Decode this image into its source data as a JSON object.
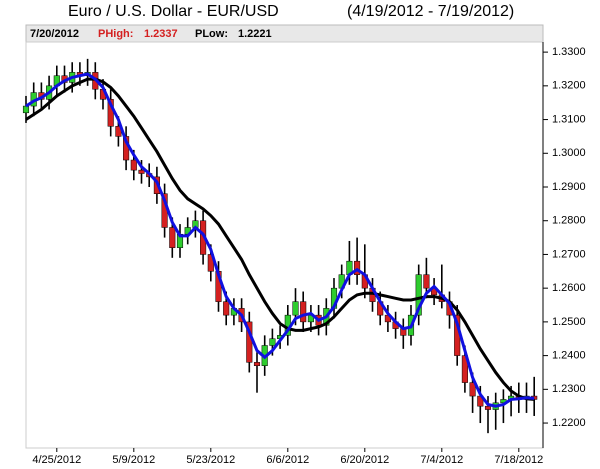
{
  "chart_data": {
    "type": "candlestick",
    "title": "Euro / U.S. Dollar -  EUR/USD",
    "subtitle": "(4/19/2012 - 7/19/2012)",
    "header": {
      "date": "7/20/2012",
      "high_label": "PHigh:",
      "high": "1.2337",
      "low_label": "PLow:",
      "low": "1.2221"
    },
    "categories": [
      null,
      null,
      null,
      null,
      "4/25/2012",
      null,
      null,
      null,
      null,
      null,
      null,
      null,
      null,
      null,
      "5/9/2012",
      null,
      null,
      null,
      null,
      null,
      null,
      null,
      null,
      null,
      "5/23/2012",
      null,
      null,
      null,
      null,
      null,
      null,
      null,
      null,
      null,
      "6/6/2012",
      null,
      null,
      null,
      null,
      null,
      null,
      null,
      null,
      null,
      "6/20/2012",
      null,
      null,
      null,
      null,
      null,
      null,
      null,
      null,
      null,
      "7/4/2012",
      null,
      null,
      null,
      null,
      null,
      null,
      null,
      null,
      null,
      "7/18/2012",
      null,
      null
    ],
    "open": [
      1.312,
      1.314,
      1.318,
      1.316,
      1.32,
      1.323,
      1.321,
      1.324,
      1.323,
      1.324,
      1.319,
      1.316,
      1.308,
      1.305,
      1.298,
      1.295,
      1.294,
      1.293,
      1.288,
      1.278,
      1.272,
      1.276,
      1.278,
      1.28,
      1.27,
      1.265,
      1.256,
      1.252,
      1.254,
      1.25,
      1.238,
      1.237,
      1.243,
      1.245,
      1.246,
      1.252,
      1.256,
      1.25,
      1.252,
      1.249,
      1.254,
      1.26,
      1.264,
      1.268,
      1.264,
      1.26,
      1.256,
      1.252,
      1.25,
      1.248,
      1.246,
      1.252,
      1.264,
      1.26,
      1.258,
      1.256,
      1.252,
      1.24,
      1.232,
      1.228,
      1.225,
      1.224,
      1.226,
      1.227,
      1.228,
      1.227,
      1.228
    ],
    "high": [
      1.317,
      1.321,
      1.321,
      1.323,
      1.326,
      1.326,
      1.327,
      1.327,
      1.328,
      1.327,
      1.322,
      1.319,
      1.311,
      1.308,
      1.301,
      1.298,
      1.297,
      1.296,
      1.291,
      1.281,
      1.279,
      1.281,
      1.283,
      1.283,
      1.273,
      1.268,
      1.259,
      1.257,
      1.257,
      1.253,
      1.241,
      1.246,
      1.248,
      1.249,
      1.255,
      1.26,
      1.259,
      1.255,
      1.255,
      1.257,
      1.263,
      1.267,
      1.274,
      1.275,
      1.273,
      1.263,
      1.259,
      1.255,
      1.253,
      1.251,
      1.255,
      1.267,
      1.269,
      1.263,
      1.267,
      1.259,
      1.255,
      1.243,
      1.235,
      1.231,
      1.228,
      1.229,
      1.23,
      1.231,
      1.232,
      1.232,
      1.2337
    ],
    "low": [
      1.309,
      1.311,
      1.313,
      1.313,
      1.317,
      1.318,
      1.318,
      1.32,
      1.32,
      1.316,
      1.313,
      1.305,
      1.302,
      1.295,
      1.292,
      1.291,
      1.29,
      1.285,
      1.275,
      1.269,
      1.269,
      1.273,
      1.275,
      1.267,
      1.262,
      1.253,
      1.249,
      1.249,
      1.247,
      1.235,
      1.229,
      1.234,
      1.24,
      1.242,
      1.243,
      1.249,
      1.247,
      1.247,
      1.246,
      1.246,
      1.251,
      1.257,
      1.261,
      1.261,
      1.257,
      1.253,
      1.249,
      1.247,
      1.245,
      1.242,
      1.243,
      1.249,
      1.257,
      1.255,
      1.254,
      1.248,
      1.237,
      1.229,
      1.223,
      1.22,
      1.217,
      1.218,
      1.22,
      1.222,
      1.223,
      1.223,
      1.2221
    ],
    "close": [
      1.314,
      1.318,
      1.316,
      1.32,
      1.323,
      1.321,
      1.324,
      1.323,
      1.324,
      1.319,
      1.316,
      1.308,
      1.305,
      1.298,
      1.295,
      1.294,
      1.293,
      1.288,
      1.278,
      1.272,
      1.276,
      1.278,
      1.28,
      1.27,
      1.265,
      1.256,
      1.252,
      1.254,
      1.25,
      1.238,
      1.237,
      1.243,
      1.245,
      1.246,
      1.252,
      1.256,
      1.25,
      1.252,
      1.249,
      1.254,
      1.26,
      1.264,
      1.268,
      1.264,
      1.26,
      1.256,
      1.252,
      1.25,
      1.248,
      1.246,
      1.252,
      1.264,
      1.26,
      1.258,
      1.256,
      1.252,
      1.24,
      1.232,
      1.228,
      1.225,
      1.224,
      1.226,
      1.227,
      1.228,
      1.227,
      1.228,
      1.227
    ],
    "up_color": "#2ecc2e",
    "down_color": "#d42020",
    "lines": [
      {
        "color": "#000000",
        "values": [
          1.31,
          1.3115,
          1.313,
          1.315,
          1.317,
          1.3185,
          1.32,
          1.321,
          1.322,
          1.322,
          1.3212,
          1.3195,
          1.317,
          1.314,
          1.311,
          1.3075,
          1.304,
          1.3005,
          1.2965,
          1.2925,
          1.289,
          1.2865,
          1.285,
          1.2835,
          1.2815,
          1.279,
          1.2755,
          1.272,
          1.2685,
          1.264,
          1.26,
          1.256,
          1.2525,
          1.2495,
          1.248,
          1.2475,
          1.2475,
          1.248,
          1.2485,
          1.2495,
          1.2515,
          1.254,
          1.2565,
          1.258,
          1.2585,
          1.2585,
          1.258,
          1.2575,
          1.257,
          1.2565,
          1.2565,
          1.257,
          1.2575,
          1.2575,
          1.257,
          1.256,
          1.2535,
          1.25,
          1.246,
          1.242,
          1.2385,
          1.235,
          1.232,
          1.2295,
          1.228,
          1.2272,
          1.227
        ]
      },
      {
        "color": "#1010e0",
        "values": [
          1.314,
          1.3155,
          1.3165,
          1.318,
          1.32,
          1.3215,
          1.3225,
          1.323,
          1.3235,
          1.322,
          1.3195,
          1.3145,
          1.31,
          1.3035,
          1.2995,
          1.296,
          1.294,
          1.2915,
          1.286,
          1.2795,
          1.2755,
          1.2755,
          1.278,
          1.276,
          1.2715,
          1.264,
          1.2575,
          1.254,
          1.252,
          1.247,
          1.2415,
          1.2395,
          1.2415,
          1.2445,
          1.2475,
          1.251,
          1.252,
          1.2525,
          1.2505,
          1.2515,
          1.2545,
          1.2595,
          1.264,
          1.2655,
          1.264,
          1.26,
          1.256,
          1.2525,
          1.25,
          1.248,
          1.2485,
          1.254,
          1.2585,
          1.2605,
          1.258,
          1.2555,
          1.2495,
          1.2415,
          1.2335,
          1.2285,
          1.2255,
          1.225,
          1.2255,
          1.227,
          1.2272,
          1.2275,
          1.2273
        ]
      }
    ],
    "ylim": [
      1.2126,
      1.333
    ],
    "yticks": [
      {
        "value": 1.22,
        "label": "1.2200"
      },
      {
        "value": 1.23,
        "label": "1.2300"
      },
      {
        "value": 1.24,
        "label": "1.2400"
      },
      {
        "value": 1.25,
        "label": "1.2500"
      },
      {
        "value": 1.26,
        "label": "1.2600"
      },
      {
        "value": 1.27,
        "label": "1.2700"
      },
      {
        "value": 1.28,
        "label": "1.2800"
      },
      {
        "value": 1.29,
        "label": "1.2900"
      },
      {
        "value": 1.3,
        "label": "1.3000"
      },
      {
        "value": 1.31,
        "label": "1.3100"
      },
      {
        "value": 1.32,
        "label": "1.3200"
      },
      {
        "value": 1.33,
        "label": "1.3300"
      }
    ]
  }
}
